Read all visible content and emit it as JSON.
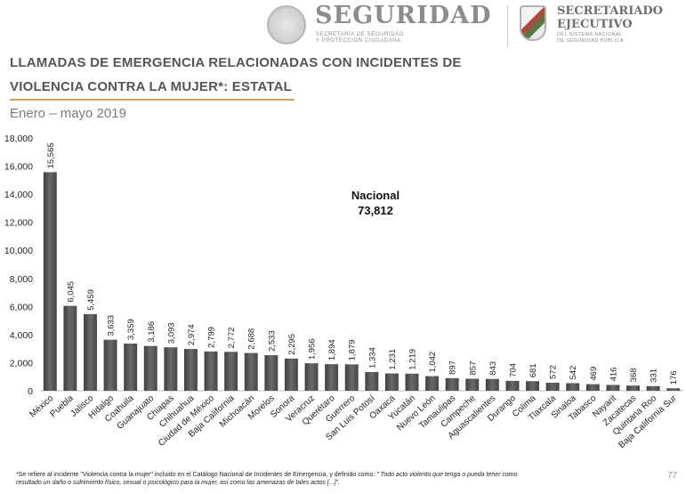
{
  "header": {
    "seguridad_title": "SEGURIDAD",
    "seguridad_sub1": "SECRETARÍA DE SEGURIDAD",
    "seguridad_sub2": "Y PROTECCIÓN CIUDADANA",
    "sesnsp_title1": "SECRETARIADO",
    "sesnsp_title2": "EJECUTIVO",
    "sesnsp_sub1": "DEL SISTEMA NACIONAL",
    "sesnsp_sub2": "DE SEGURIDAD PÚBLICA"
  },
  "slide": {
    "title_line1": "LLAMADAS DE EMERGENCIA RELACIONADAS CON INCIDENTES DE",
    "title_line2": "VIOLENCIA CONTRA LA MUJER*: ESTATAL",
    "subtitle": "Enero – mayo 2019",
    "footnote_main": "*Se refiere al incidente \"Violencia contra la mujer\" incluido en el Catálogo Nacional de Incidentes de Emergencia, y definido como: ",
    "footnote_quote_1": "\" Todo acto violento que tenga o pueda tener como",
    "footnote_quote_2": "resultado un daño o sufrimiento físico, sexual o psicológico para la mujer, así como las amenazas de tales actos [...]\".",
    "page_number": "77"
  },
  "chart_data": {
    "type": "bar",
    "title": "",
    "xlabel": "",
    "ylabel": "",
    "ylim": [
      0,
      18000
    ],
    "yticks": [
      "0",
      "2,000",
      "4,000",
      "6,000",
      "8,000",
      "10,000",
      "12,000",
      "14,000",
      "16,000",
      "18,000"
    ],
    "grid": false,
    "bar_color": "#555555",
    "categories": [
      "México",
      "Puebla",
      "Jalisco",
      "Hidalgo",
      "Coahuila",
      "Guanajuato",
      "Chiapas",
      "Chihuahua",
      "Ciudad de México",
      "Baja California",
      "Michoacán",
      "Morelos",
      "Sonora",
      "Veracruz",
      "Querétaro",
      "Guerrero",
      "San Luis Potosí",
      "Oaxaca",
      "Yucatán",
      "Nuevo León",
      "Tamaulipas",
      "Campeche",
      "Aguascalientes",
      "Durango",
      "Colima",
      "Tlaxcala",
      "Sinaloa",
      "Tabasco",
      "Nayarit",
      "Zacatecas",
      "Quintana Roo",
      "Baja California Sur"
    ],
    "values": [
      15565,
      6045,
      5459,
      3633,
      3359,
      3186,
      3093,
      2974,
      2799,
      2772,
      2688,
      2533,
      2295,
      1956,
      1894,
      1879,
      1334,
      1231,
      1219,
      1042,
      897,
      857,
      843,
      704,
      681,
      572,
      542,
      469,
      416,
      368,
      331,
      176
    ],
    "value_labels": [
      "15,565",
      "6,045",
      "5,459",
      "3,633",
      "3,359",
      "3,186",
      "3,093",
      "2,974",
      "2,799",
      "2,772",
      "2,688",
      "2,533",
      "2,295",
      "1,956",
      "1,894",
      "1,879",
      "1,334",
      "1,231",
      "1,219",
      "1,042",
      "897",
      "857",
      "843",
      "704",
      "681",
      "572",
      "542",
      "469",
      "416",
      "368",
      "331",
      "176"
    ],
    "annotation": {
      "label": "Nacional",
      "value": "73,812"
    }
  }
}
